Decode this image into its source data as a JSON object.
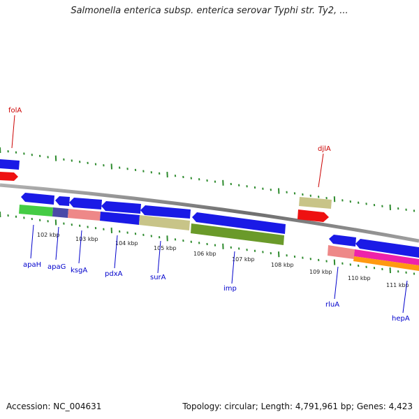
{
  "title": "Salmonella enterica subsp. enterica serovar Typhi str. Ty2, ...",
  "footer": {
    "accession": "Accession: NC_004631",
    "topology": "Topology: circular; Length: 4,791,961 bp; Genes: 4,423"
  },
  "colors": {
    "backbone": "#7f7f7f",
    "tick": "#2e8b2e",
    "blue": "#1a1ae6",
    "red": "#ee1111",
    "green": "#44cc44",
    "purple": "#4a4aa8",
    "salmon": "#ee8888",
    "khaki": "#c8c488",
    "olive": "#6a9a2a",
    "magenta": "#ee22aa",
    "orange": "#ff9911",
    "label_red": "#cc0000",
    "label_blue": "#0000cc"
  },
  "kbp_ticks": [
    "102 kbp",
    "103 kbp",
    "104 kbp",
    "105 kbp",
    "106 kbp",
    "107 kbp",
    "108 kbp",
    "109 kbp",
    "110 kbp",
    "111 kbp"
  ],
  "genes_top": [
    "folA",
    "djlA"
  ],
  "genes_bottom": [
    "apaH",
    "apaG",
    "ksgA",
    "pdxA",
    "surA",
    "imp",
    "rluA",
    "hepA"
  ]
}
